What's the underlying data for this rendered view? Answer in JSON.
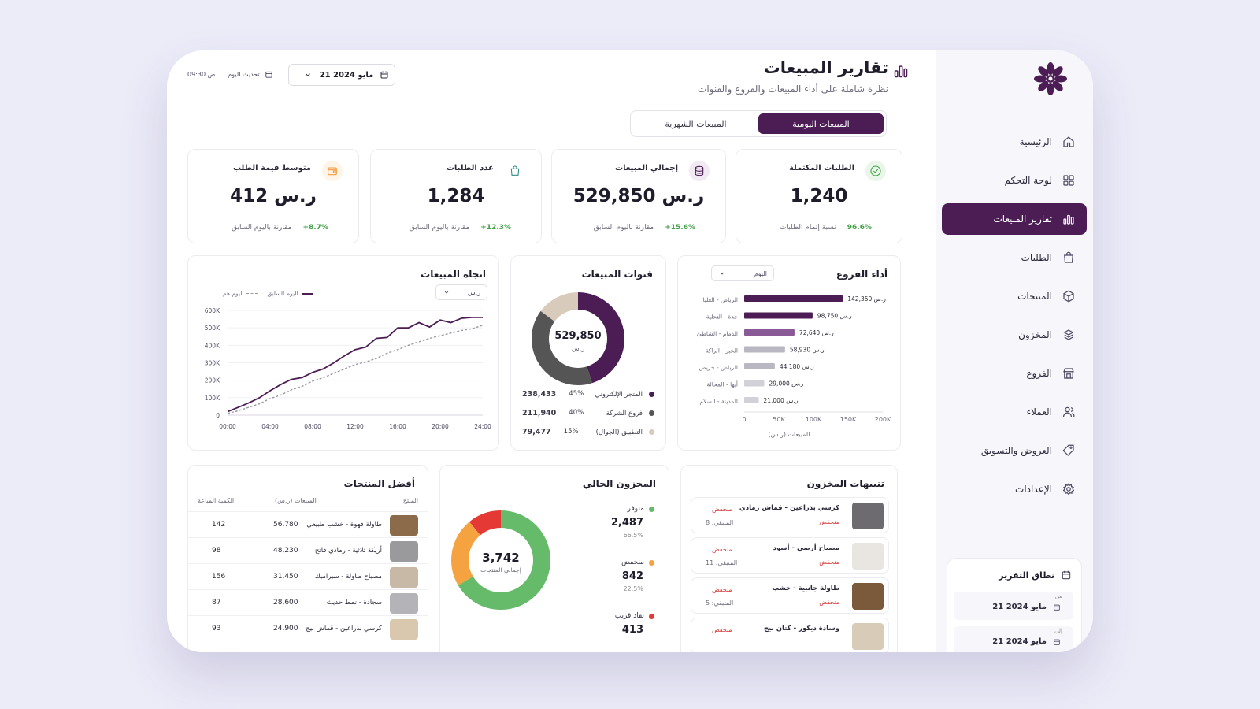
{
  "sidebar": {
    "items": [
      {
        "label": "الرئيسية",
        "icon": "home-icon"
      },
      {
        "label": "لوحة التحكم",
        "icon": "dashboard-icon"
      },
      {
        "label": "تقارير المبيعات",
        "icon": "chart-icon",
        "active": true
      },
      {
        "label": "الطلبات",
        "icon": "bag-icon"
      },
      {
        "label": "المنتجات",
        "icon": "box-icon"
      },
      {
        "label": "المخزون",
        "icon": "stack-icon"
      },
      {
        "label": "الفروع",
        "icon": "store-icon"
      },
      {
        "label": "العملاء",
        "icon": "users-icon"
      },
      {
        "label": "العروض والتسويق",
        "icon": "tag-icon"
      },
      {
        "label": "الإعدادات",
        "icon": "gear-icon"
      }
    ],
    "report_range": {
      "title": "نطاق التقرير",
      "from_label": "من",
      "from_value": "21 مايو 2024",
      "to_label": "إلى",
      "to_value": "21 مايو 2024"
    }
  },
  "header": {
    "title": "تقارير المبيعات",
    "subtitle": "نظرة شاملة على أداء المبيعات والفروع والقنوات",
    "date_value": "21 مايو 2024",
    "update_label": "تحديث اليوم",
    "update_time": "09:30 ص"
  },
  "tabs": [
    "المبيعات اليومية",
    "المبيعات الشهرية"
  ],
  "kpis": [
    {
      "title": "الطلبات المكتملة",
      "value": "1,240",
      "foot_label": "نسبة إتمام الطلبات",
      "foot_value": "96.6%",
      "icon": "check-circle-icon",
      "color": "#43a047",
      "bg": "#eaf6ea"
    },
    {
      "title": "إجمالي المبيعات",
      "value": "529,850 ر.س",
      "foot_label": "مقارنة باليوم السابق",
      "foot_value": "+15.6%",
      "icon": "coins-icon",
      "color": "#4b1d54",
      "bg": "#f1eaf3"
    },
    {
      "title": "عدد الطلبات",
      "value": "1,284",
      "foot_label": "مقارنة باليوم السابق",
      "foot_value": "+12.3%",
      "icon": "shopping-bag-icon",
      "color": "#2e8b83",
      "bg": "#ffffff"
    },
    {
      "title": "متوسط قيمة الطلب",
      "value": "412 ر.س",
      "foot_label": "مقارنة باليوم السابق",
      "foot_value": "+8.7%",
      "icon": "wallet-icon",
      "color": "#f29a3a",
      "bg": "#fff4e8"
    }
  ],
  "branches": {
    "title": "أداء الفروع",
    "filter": "اليوم",
    "xlabel": "المبيعات (ر.س)"
  },
  "channels": {
    "title": "قنوات المبيعات",
    "center_value": "529,850",
    "center_unit": "ر.س"
  },
  "trend": {
    "title": "اتجاه المبيعات",
    "filter": "ر.س",
    "legend_today": "اليوم هم",
    "legend_prev": "اليوم السابق"
  },
  "chart_data": [
    {
      "type": "bar",
      "orientation": "horizontal",
      "categories": [
        "الرياض - العليا",
        "جدة - التحلية",
        "الدمام - الشاطئ",
        "الخبر - الراكة",
        "الرياض - خريص",
        "أبها - المحالة",
        "المدينة - السلام"
      ],
      "values": [
        142350,
        98750,
        72640,
        58930,
        44180,
        29000,
        21000
      ],
      "value_labels": [
        "142,350 ر.س",
        "98,750 ر.س",
        "72,640 ر.س",
        "58,930 ر.س",
        "44,180 ر.س",
        "29,000 ر.س",
        "21,000 ر.س"
      ],
      "colors": [
        "#4b1d54",
        "#4b1d54",
        "#8a5a96",
        "#b9b7c1",
        "#b9b7c1",
        "#d2d1d8",
        "#d2d1d8"
      ],
      "xticks": [
        "0",
        "50K",
        "100K",
        "150K",
        "200K"
      ],
      "xlim": [
        0,
        200000
      ],
      "xlabel": "المبيعات (ر.س)"
    },
    {
      "type": "pie",
      "labels": [
        "المتجر الإلكتروني",
        "فروع الشركة",
        "التطبيق (الجوال)"
      ],
      "values": [
        238433,
        211940,
        79477
      ],
      "percents": [
        "45%",
        "40%",
        "15%"
      ],
      "value_labels": [
        "238,433",
        "211,940",
        "79,477"
      ],
      "colors": [
        "#4b1d54",
        "#555555",
        "#d9cbbb"
      ]
    },
    {
      "type": "line",
      "x": [
        "00:00",
        "01:00",
        "02:00",
        "03:00",
        "04:00",
        "05:00",
        "06:00",
        "07:00",
        "08:00",
        "09:00",
        "10:00",
        "11:00",
        "12:00",
        "13:00",
        "14:00",
        "15:00",
        "16:00",
        "17:00",
        "18:00",
        "19:00",
        "20:00",
        "21:00",
        "22:00",
        "23:00",
        "24:00"
      ],
      "series": [
        {
          "name": "اليوم هم",
          "values": [
            20000,
            45000,
            70000,
            100000,
            140000,
            175000,
            205000,
            215000,
            245000,
            265000,
            300000,
            340000,
            375000,
            390000,
            440000,
            445000,
            500000,
            500000,
            530000,
            505000,
            545000,
            530000,
            555000,
            560000,
            560000
          ],
          "color": "#4b1d54"
        },
        {
          "name": "اليوم السابق",
          "values": [
            10000,
            25000,
            45000,
            65000,
            95000,
            115000,
            145000,
            165000,
            195000,
            215000,
            240000,
            265000,
            290000,
            305000,
            325000,
            355000,
            375000,
            400000,
            420000,
            440000,
            455000,
            470000,
            485000,
            495000,
            515000
          ],
          "color": "#9a98a4"
        }
      ],
      "yticks": [
        "0",
        "100K",
        "200K",
        "300K",
        "400K",
        "500K",
        "600K"
      ],
      "xticks": [
        "00:00",
        "04:00",
        "08:00",
        "12:00",
        "16:00",
        "20:00",
        "24:00"
      ],
      "ylim": [
        0,
        600000
      ]
    },
    {
      "type": "pie",
      "labels": [
        "متوفر",
        "منخفض",
        "نفاد قريب"
      ],
      "values": [
        2487,
        842,
        413
      ],
      "percents": [
        "66.5%",
        "22.5%",
        ""
      ],
      "colors": [
        "#66bb6a",
        "#f4a340",
        "#e53935"
      ]
    }
  ],
  "top_products": {
    "title": "أفضل المنتجات",
    "headers": {
      "product": "المنتج",
      "sales": "المبيعات (ر.س)",
      "qty": "الكمية المباعة"
    },
    "rows": [
      {
        "name": "طاولة قهوة - خشب طبيعي",
        "sales": "56,780",
        "qty": "142",
        "thumb": "#8b6b4a"
      },
      {
        "name": "أريكة ثلاثية - رمادي فاتح",
        "sales": "48,230",
        "qty": "98",
        "thumb": "#9a9a9c"
      },
      {
        "name": "مصباح طاولة - سيراميك",
        "sales": "31,450",
        "qty": "156",
        "thumb": "#c7b9a5"
      },
      {
        "name": "سجادة - نمط حديث",
        "sales": "28,600",
        "qty": "87",
        "thumb": "#b4b4b8"
      },
      {
        "name": "كرسي بذراعين - قماش بيج",
        "sales": "24,900",
        "qty": "93",
        "thumb": "#d9c7ae"
      }
    ]
  },
  "inventory": {
    "title": "المخزون الحالي",
    "center_value": "3,742",
    "center_label": "إجمالي المنتجات",
    "items": [
      {
        "label": "متوفر",
        "value": "2,487",
        "pct": "66.5%",
        "color": "#66bb6a"
      },
      {
        "label": "منخفض",
        "value": "842",
        "pct": "22.5%",
        "color": "#f4a340"
      },
      {
        "label": "نفاد قريب",
        "value": "413",
        "pct": "",
        "color": "#e53935"
      }
    ]
  },
  "alerts": {
    "title": "تنبيهات المخزون",
    "items": [
      {
        "name": "كرسي بذراعين - قماش رمادي",
        "tag": "منخفض",
        "status": "منخفض",
        "left": "المتبقي: 8",
        "img": "#6d6b70"
      },
      {
        "name": "مصباح أرضي - أسود",
        "tag": "منخفض",
        "status": "منخفض",
        "left": "المتبقي: 11",
        "img": "#e9e6e1"
      },
      {
        "name": "طاولة جانبية - خشب",
        "tag": "منخفض",
        "status": "منخفض",
        "left": "المتبقي: 5",
        "img": "#7b5a3c"
      },
      {
        "name": "وسادة ديكور - كتان بيج",
        "tag": "",
        "status": "منخفض",
        "left": "",
        "img": "#d8cbb7"
      }
    ]
  }
}
